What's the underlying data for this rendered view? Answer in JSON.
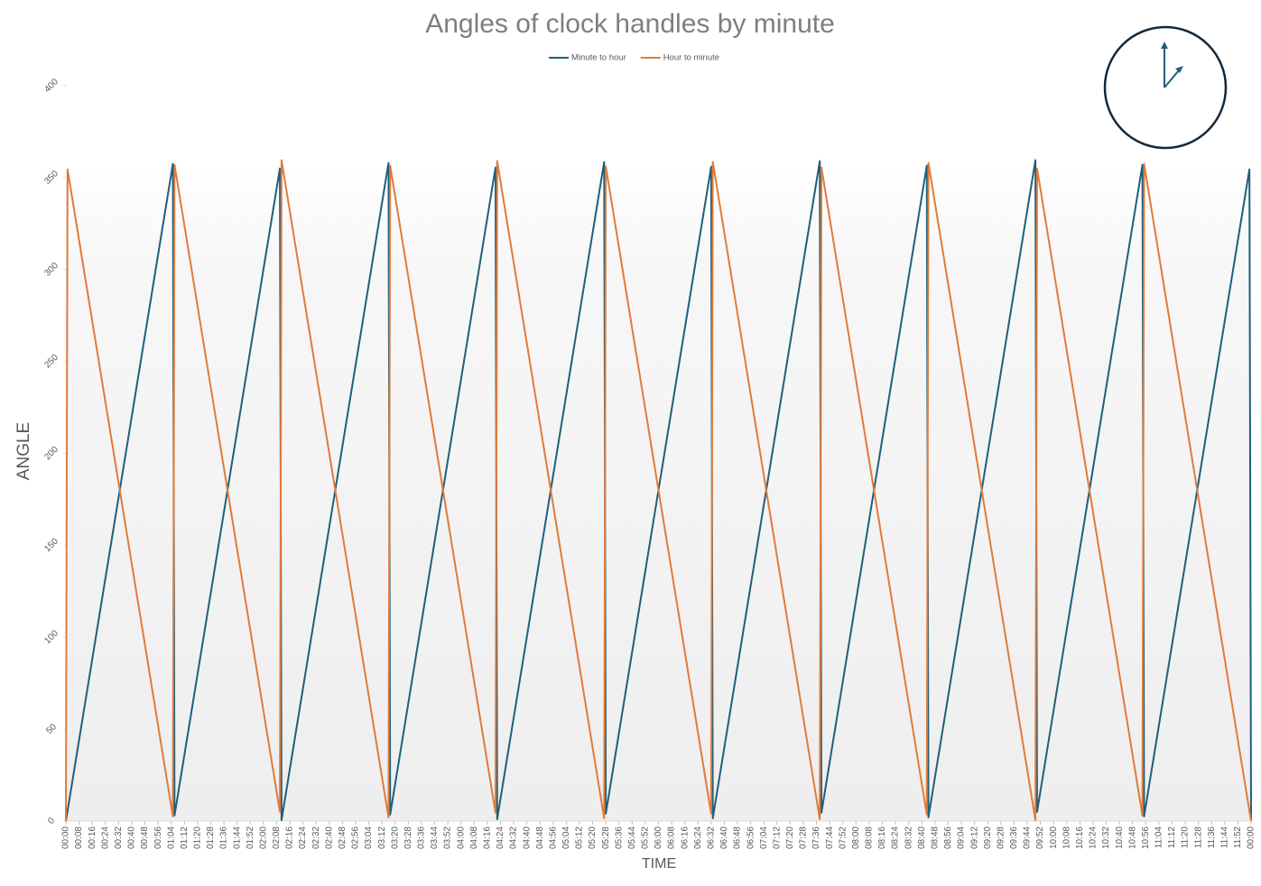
{
  "chart_data": {
    "type": "line",
    "title": "Angles of clock handles by minute",
    "x_label": "TIME",
    "y_label": "ANGLE",
    "xlim": [
      0,
      720
    ],
    "ylim": [
      0,
      400
    ],
    "yticks": [
      0,
      50,
      100,
      150,
      200,
      250,
      300,
      350,
      400
    ],
    "xticks": [
      {
        "value": 0,
        "label": "00:00"
      },
      {
        "value": 8,
        "label": "00:08"
      },
      {
        "value": 16,
        "label": "00:16"
      },
      {
        "value": 24,
        "label": "00:24"
      },
      {
        "value": 32,
        "label": "00:32"
      },
      {
        "value": 40,
        "label": "00:40"
      },
      {
        "value": 48,
        "label": "00:48"
      },
      {
        "value": 56,
        "label": "00:56"
      },
      {
        "value": 64,
        "label": "01:04"
      },
      {
        "value": 72,
        "label": "01:12"
      },
      {
        "value": 80,
        "label": "01:20"
      },
      {
        "value": 88,
        "label": "01:28"
      },
      {
        "value": 96,
        "label": "01:36"
      },
      {
        "value": 104,
        "label": "01:44"
      },
      {
        "value": 112,
        "label": "01:52"
      },
      {
        "value": 120,
        "label": "02:00"
      },
      {
        "value": 128,
        "label": "02:08"
      },
      {
        "value": 136,
        "label": "02:16"
      },
      {
        "value": 144,
        "label": "02:24"
      },
      {
        "value": 152,
        "label": "02:32"
      },
      {
        "value": 160,
        "label": "02:40"
      },
      {
        "value": 168,
        "label": "02:48"
      },
      {
        "value": 176,
        "label": "02:56"
      },
      {
        "value": 184,
        "label": "03:04"
      },
      {
        "value": 192,
        "label": "03:12"
      },
      {
        "value": 200,
        "label": "03:20"
      },
      {
        "value": 208,
        "label": "03:28"
      },
      {
        "value": 216,
        "label": "03:36"
      },
      {
        "value": 224,
        "label": "03:44"
      },
      {
        "value": 232,
        "label": "03:52"
      },
      {
        "value": 240,
        "label": "04:00"
      },
      {
        "value": 248,
        "label": "04:08"
      },
      {
        "value": 256,
        "label": "04:16"
      },
      {
        "value": 264,
        "label": "04:24"
      },
      {
        "value": 272,
        "label": "04:32"
      },
      {
        "value": 280,
        "label": "04:40"
      },
      {
        "value": 288,
        "label": "04:48"
      },
      {
        "value": 296,
        "label": "04:56"
      },
      {
        "value": 304,
        "label": "05:04"
      },
      {
        "value": 312,
        "label": "05:12"
      },
      {
        "value": 320,
        "label": "05:20"
      },
      {
        "value": 328,
        "label": "05:28"
      },
      {
        "value": 336,
        "label": "05:36"
      },
      {
        "value": 344,
        "label": "05:44"
      },
      {
        "value": 352,
        "label": "05:52"
      },
      {
        "value": 360,
        "label": "06:00"
      },
      {
        "value": 368,
        "label": "06:08"
      },
      {
        "value": 376,
        "label": "06:16"
      },
      {
        "value": 384,
        "label": "06:24"
      },
      {
        "value": 392,
        "label": "06:32"
      },
      {
        "value": 400,
        "label": "06:40"
      },
      {
        "value": 408,
        "label": "06:48"
      },
      {
        "value": 416,
        "label": "06:56"
      },
      {
        "value": 424,
        "label": "07:04"
      },
      {
        "value": 432,
        "label": "07:12"
      },
      {
        "value": 440,
        "label": "07:20"
      },
      {
        "value": 448,
        "label": "07:28"
      },
      {
        "value": 456,
        "label": "07:36"
      },
      {
        "value": 464,
        "label": "07:44"
      },
      {
        "value": 472,
        "label": "07:52"
      },
      {
        "value": 480,
        "label": "08:00"
      },
      {
        "value": 488,
        "label": "08:08"
      },
      {
        "value": 496,
        "label": "08:16"
      },
      {
        "value": 504,
        "label": "08:24"
      },
      {
        "value": 512,
        "label": "08:32"
      },
      {
        "value": 520,
        "label": "08:40"
      },
      {
        "value": 528,
        "label": "08:48"
      },
      {
        "value": 536,
        "label": "08:56"
      },
      {
        "value": 544,
        "label": "09:04"
      },
      {
        "value": 552,
        "label": "09:12"
      },
      {
        "value": 560,
        "label": "09:20"
      },
      {
        "value": 568,
        "label": "09:28"
      },
      {
        "value": 576,
        "label": "09:36"
      },
      {
        "value": 584,
        "label": "09:44"
      },
      {
        "value": 592,
        "label": "09:52"
      },
      {
        "value": 600,
        "label": "10:00"
      },
      {
        "value": 608,
        "label": "10:08"
      },
      {
        "value": 616,
        "label": "10:16"
      },
      {
        "value": 624,
        "label": "10:24"
      },
      {
        "value": 632,
        "label": "10:32"
      },
      {
        "value": 640,
        "label": "10:40"
      },
      {
        "value": 648,
        "label": "10:48"
      },
      {
        "value": 656,
        "label": "10:56"
      },
      {
        "value": 664,
        "label": "11:04"
      },
      {
        "value": 672,
        "label": "11:12"
      },
      {
        "value": 680,
        "label": "11:20"
      },
      {
        "value": 688,
        "label": "11:28"
      },
      {
        "value": 696,
        "label": "11:36"
      },
      {
        "value": 704,
        "label": "11:44"
      },
      {
        "value": 712,
        "label": "11:52"
      },
      {
        "value": 720,
        "label": "00:00"
      }
    ],
    "x": [
      0,
      1,
      8,
      16,
      24,
      32,
      40,
      48,
      56,
      64,
      65,
      66,
      72,
      80,
      88,
      96,
      104,
      112,
      120,
      128,
      130,
      131,
      136,
      144,
      152,
      160,
      168,
      176,
      184,
      192,
      196,
      197,
      200,
      208,
      216,
      224,
      232,
      240,
      248,
      256,
      261,
      262,
      264,
      272,
      280,
      288,
      296,
      304,
      312,
      320,
      327,
      328,
      336,
      344,
      352,
      360,
      368,
      376,
      384,
      392,
      393,
      400,
      408,
      416,
      424,
      432,
      440,
      448,
      456,
      458,
      459,
      464,
      472,
      480,
      488,
      496,
      504,
      512,
      520,
      523,
      524,
      528,
      536,
      544,
      552,
      560,
      568,
      576,
      584,
      589,
      590,
      592,
      600,
      608,
      616,
      624,
      632,
      640,
      648,
      654,
      655,
      656,
      664,
      672,
      680,
      688,
      696,
      704,
      712,
      719,
      720
    ],
    "series": [
      {
        "name": "Minute to hour",
        "color": "#1f5f7b",
        "values": [
          0,
          5.5,
          44,
          88,
          132,
          176,
          220,
          264,
          308,
          352,
          357.5,
          3,
          36,
          80,
          124,
          168,
          212,
          256,
          300,
          344,
          355,
          0.5,
          28,
          72,
          116,
          160,
          204,
          248,
          292,
          336,
          358,
          3.5,
          20,
          64,
          108,
          152,
          196,
          240,
          284,
          328,
          355.5,
          1,
          12,
          56,
          100,
          144,
          188,
          232,
          276,
          320,
          358.5,
          4,
          48,
          92,
          136,
          180,
          224,
          268,
          312,
          356,
          1.5,
          40,
          84,
          128,
          172,
          216,
          260,
          304,
          348,
          359,
          4.5,
          32,
          76,
          120,
          164,
          208,
          252,
          296,
          340,
          356.5,
          2,
          24,
          68,
          112,
          156,
          200,
          244,
          288,
          332,
          359.5,
          5,
          16,
          60,
          104,
          148,
          192,
          236,
          280,
          324,
          357,
          2.5,
          8,
          52,
          96,
          140,
          184,
          228,
          272,
          316,
          354.5,
          0
        ]
      },
      {
        "name": "Hour to minute",
        "color": "#e07b39",
        "values": [
          0,
          354.5,
          316,
          272,
          228,
          184,
          140,
          96,
          52,
          8,
          2.5,
          357,
          324,
          280,
          236,
          192,
          148,
          104,
          60,
          16,
          5,
          359.5,
          332,
          288,
          244,
          200,
          156,
          112,
          68,
          24,
          2,
          356.5,
          340,
          296,
          252,
          208,
          164,
          120,
          76,
          32,
          4.5,
          359,
          348,
          304,
          260,
          216,
          172,
          128,
          84,
          40,
          1.5,
          356,
          312,
          268,
          224,
          180,
          136,
          92,
          48,
          4,
          358.5,
          320,
          276,
          232,
          188,
          144,
          100,
          56,
          12,
          1,
          355.5,
          328,
          284,
          240,
          196,
          152,
          108,
          64,
          20,
          3.5,
          358,
          336,
          292,
          248,
          204,
          160,
          116,
          72,
          28,
          0.5,
          355,
          344,
          300,
          256,
          212,
          168,
          124,
          80,
          36,
          3,
          357.5,
          352,
          308,
          264,
          220,
          176,
          132,
          88,
          44,
          5.5,
          0
        ]
      }
    ]
  }
}
